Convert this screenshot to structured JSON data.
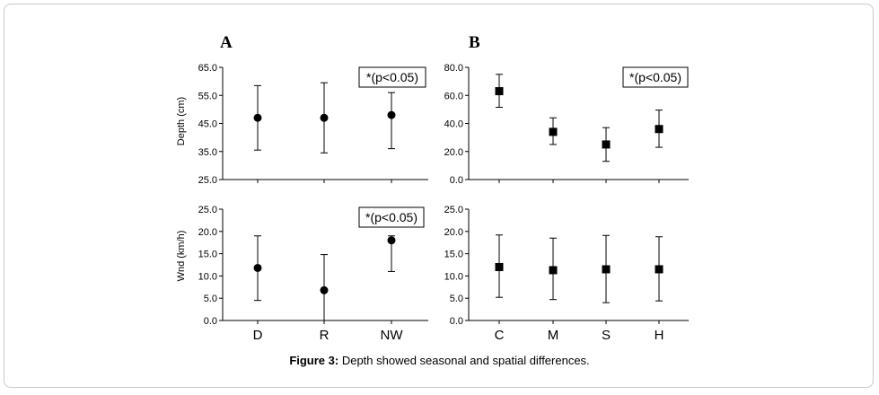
{
  "figure": {
    "caption_label": "Figure 3:",
    "caption_text": " Depth showed seasonal and spatial differences."
  },
  "chart_data": [
    {
      "panel": "A",
      "type": "scatter",
      "ylabel": "Depth (cm)",
      "ylim": [
        25,
        65
      ],
      "yticks": [
        25,
        35,
        45,
        55,
        65
      ],
      "tick_format": 1,
      "categories": [
        "D",
        "R",
        "NW"
      ],
      "show_categories": false,
      "values": [
        47,
        47,
        48
      ],
      "err_low": [
        35.5,
        34.5,
        36
      ],
      "err_high": [
        58.5,
        59.5,
        56
      ],
      "marker": "circle",
      "annotation": "*(p<0.05)",
      "title": "A"
    },
    {
      "panel": "B",
      "type": "scatter",
      "ylabel": "",
      "ylim": [
        0,
        80
      ],
      "yticks": [
        0,
        20,
        40,
        60,
        80
      ],
      "tick_format": 1,
      "categories": [
        "C",
        "M",
        "S",
        "H"
      ],
      "show_categories": false,
      "values": [
        63,
        34,
        25,
        36
      ],
      "err_low": [
        51.5,
        25,
        13,
        23
      ],
      "err_high": [
        75,
        44,
        37,
        49.5
      ],
      "marker": "square",
      "annotation": "*(p<0.05)",
      "title": "B"
    },
    {
      "panel": "A-bottom",
      "type": "scatter",
      "ylabel": "Wnd (km/h)",
      "ylim": [
        0,
        25
      ],
      "yticks": [
        0,
        5,
        10,
        15,
        20,
        25
      ],
      "tick_format": 1,
      "categories": [
        "D",
        "R",
        "NW"
      ],
      "show_categories": true,
      "values": [
        11.8,
        6.8,
        18
      ],
      "err_low": [
        4.5,
        0,
        11
      ],
      "err_high": [
        19,
        14.8,
        19
      ],
      "marker": "circle",
      "annotation": "*(p<0.05)",
      "title": ""
    },
    {
      "panel": "B-bottom",
      "type": "scatter",
      "ylabel": "",
      "ylim": [
        0,
        25
      ],
      "yticks": [
        0,
        5,
        10,
        15,
        20,
        25
      ],
      "tick_format": 1,
      "categories": [
        "C",
        "M",
        "S",
        "H"
      ],
      "show_categories": true,
      "values": [
        12,
        11.3,
        11.5,
        11.5
      ],
      "err_low": [
        5.2,
        4.7,
        4,
        4.4
      ],
      "err_high": [
        19.2,
        18.5,
        19.1,
        18.8
      ],
      "marker": "square",
      "annotation": "",
      "title": ""
    }
  ]
}
